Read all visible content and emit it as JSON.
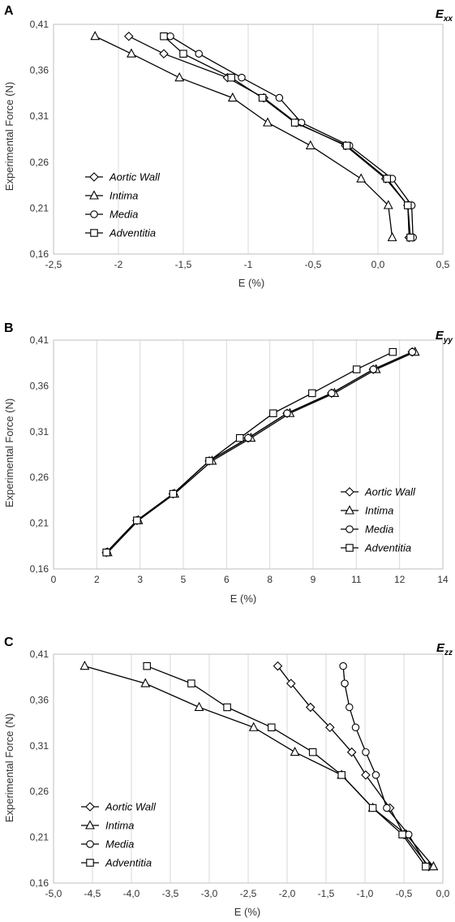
{
  "chart_data": [
    {
      "type": "line",
      "panel": "A",
      "strain": {
        "base": "E",
        "sub": "xx"
      },
      "xlabel": "E  (%)",
      "ylabel": "Experimental Force (N)",
      "xlim": [
        -2.5,
        0.5
      ],
      "ylim": [
        0.16,
        0.41
      ],
      "xticks": [
        "-2,5",
        "-2",
        "-1,5",
        "-1",
        "-0,5",
        "0,0",
        "0,5"
      ],
      "yticks": [
        "0,16",
        "0,21",
        "0,26",
        "0,31",
        "0,36",
        "0,41"
      ],
      "grid": "vertical",
      "legend_position": "bottom-left",
      "series": [
        {
          "name": "Aortic Wall",
          "marker": "diamond",
          "points": [
            [
              0.24,
              0.178
            ],
            [
              0.23,
              0.213
            ],
            [
              0.06,
              0.242
            ],
            [
              -0.25,
              0.278
            ],
            [
              -0.63,
              0.303
            ],
            [
              -0.88,
              0.33
            ],
            [
              -1.16,
              0.352
            ],
            [
              -1.65,
              0.378
            ],
            [
              -1.92,
              0.397
            ]
          ]
        },
        {
          "name": "Intima",
          "marker": "triangle",
          "points": [
            [
              0.11,
              0.178
            ],
            [
              0.08,
              0.213
            ],
            [
              -0.13,
              0.242
            ],
            [
              -0.52,
              0.278
            ],
            [
              -0.85,
              0.303
            ],
            [
              -1.12,
              0.33
            ],
            [
              -1.53,
              0.352
            ],
            [
              -1.9,
              0.378
            ],
            [
              -2.18,
              0.397
            ]
          ]
        },
        {
          "name": "Media",
          "marker": "circle",
          "points": [
            [
              0.27,
              0.178
            ],
            [
              0.26,
              0.213
            ],
            [
              0.11,
              0.242
            ],
            [
              -0.22,
              0.278
            ],
            [
              -0.59,
              0.303
            ],
            [
              -0.76,
              0.33
            ],
            [
              -1.05,
              0.352
            ],
            [
              -1.38,
              0.378
            ],
            [
              -1.6,
              0.397
            ]
          ]
        },
        {
          "name": "Adventitia",
          "marker": "square",
          "points": [
            [
              0.25,
              0.178
            ],
            [
              0.23,
              0.213
            ],
            [
              0.07,
              0.242
            ],
            [
              -0.24,
              0.278
            ],
            [
              -0.64,
              0.303
            ],
            [
              -0.89,
              0.33
            ],
            [
              -1.13,
              0.352
            ],
            [
              -1.5,
              0.378
            ],
            [
              -1.65,
              0.397
            ]
          ]
        }
      ]
    },
    {
      "type": "line",
      "panel": "B",
      "strain": {
        "base": "E",
        "sub": "yy"
      },
      "xlabel": "E  (%)",
      "ylabel": "Experimental Force (N)",
      "xlim": [
        0,
        14
      ],
      "ylim": [
        0.16,
        0.41
      ],
      "xticks": [
        "0",
        "2",
        "3",
        "5",
        "6",
        "8",
        "9",
        "11",
        "12",
        "14"
      ],
      "yticks": [
        "0,16",
        "0,21",
        "0,26",
        "0,31",
        "0,36",
        "0,41"
      ],
      "grid": "vertical",
      "legend_position": "bottom-right",
      "series": [
        {
          "name": "Aortic Wall",
          "marker": "diamond",
          "points": [
            [
              1.9,
              0.178
            ],
            [
              3.0,
              0.213
            ],
            [
              4.3,
              0.242
            ],
            [
              5.6,
              0.278
            ],
            [
              7.0,
              0.303
            ],
            [
              8.4,
              0.33
            ],
            [
              10.0,
              0.352
            ],
            [
              11.5,
              0.378
            ],
            [
              12.9,
              0.397
            ]
          ]
        },
        {
          "name": "Intima",
          "marker": "triangle",
          "points": [
            [
              1.95,
              0.178
            ],
            [
              3.05,
              0.213
            ],
            [
              4.35,
              0.242
            ],
            [
              5.7,
              0.278
            ],
            [
              7.1,
              0.303
            ],
            [
              8.5,
              0.33
            ],
            [
              10.1,
              0.352
            ],
            [
              11.6,
              0.378
            ],
            [
              13.0,
              0.397
            ]
          ]
        },
        {
          "name": "Media",
          "marker": "circle",
          "points": [
            [
              1.9,
              0.178
            ],
            [
              3.0,
              0.213
            ],
            [
              4.3,
              0.242
            ],
            [
              5.6,
              0.278
            ],
            [
              7.0,
              0.303
            ],
            [
              8.4,
              0.33
            ],
            [
              10.0,
              0.352
            ],
            [
              11.5,
              0.378
            ],
            [
              12.9,
              0.397
            ]
          ]
        },
        {
          "name": "Adventitia",
          "marker": "square",
          "points": [
            [
              1.9,
              0.178
            ],
            [
              3.0,
              0.213
            ],
            [
              4.3,
              0.242
            ],
            [
              5.6,
              0.278
            ],
            [
              6.7,
              0.303
            ],
            [
              7.9,
              0.33
            ],
            [
              9.3,
              0.352
            ],
            [
              10.9,
              0.378
            ],
            [
              12.2,
              0.397
            ]
          ]
        }
      ]
    },
    {
      "type": "line",
      "panel": "C",
      "strain": {
        "base": "E",
        "sub": "zz"
      },
      "xlabel": "E  (%)",
      "ylabel": "Experimental Force (N)",
      "xlim": [
        -5.0,
        0.0
      ],
      "ylim": [
        0.16,
        0.41
      ],
      "xticks": [
        "-5,0",
        "-4,5",
        "-4,0",
        "-3,5",
        "-3,0",
        "-2,5",
        "-2,0",
        "-1,5",
        "-1,0",
        "-0,5",
        "0,0"
      ],
      "yticks": [
        "0,16",
        "0,21",
        "0,26",
        "0,31",
        "0,36",
        "0,41"
      ],
      "grid": "vertical",
      "legend_position": "bottom-left",
      "series": [
        {
          "name": "Aortic Wall",
          "marker": "diamond",
          "points": [
            [
              -0.18,
              0.178
            ],
            [
              -0.5,
              0.213
            ],
            [
              -0.68,
              0.242
            ],
            [
              -0.99,
              0.278
            ],
            [
              -1.17,
              0.303
            ],
            [
              -1.45,
              0.33
            ],
            [
              -1.7,
              0.352
            ],
            [
              -1.95,
              0.378
            ],
            [
              -2.12,
              0.397
            ]
          ]
        },
        {
          "name": "Intima",
          "marker": "triangle",
          "points": [
            [
              -0.12,
              0.178
            ],
            [
              -0.47,
              0.213
            ],
            [
              -0.9,
              0.242
            ],
            [
              -1.3,
              0.278
            ],
            [
              -1.9,
              0.303
            ],
            [
              -2.43,
              0.33
            ],
            [
              -3.13,
              0.352
            ],
            [
              -3.82,
              0.378
            ],
            [
              -4.6,
              0.397
            ]
          ]
        },
        {
          "name": "Media",
          "marker": "circle",
          "points": [
            [
              -0.2,
              0.178
            ],
            [
              -0.44,
              0.213
            ],
            [
              -0.72,
              0.242
            ],
            [
              -0.86,
              0.278
            ],
            [
              -0.99,
              0.303
            ],
            [
              -1.12,
              0.33
            ],
            [
              -1.2,
              0.352
            ],
            [
              -1.26,
              0.378
            ],
            [
              -1.28,
              0.397
            ]
          ]
        },
        {
          "name": "Adventitia",
          "marker": "square",
          "points": [
            [
              -0.22,
              0.178
            ],
            [
              -0.52,
              0.213
            ],
            [
              -0.9,
              0.242
            ],
            [
              -1.3,
              0.278
            ],
            [
              -1.67,
              0.303
            ],
            [
              -2.2,
              0.33
            ],
            [
              -2.77,
              0.352
            ],
            [
              -3.23,
              0.378
            ],
            [
              -3.8,
              0.397
            ]
          ]
        }
      ]
    }
  ]
}
